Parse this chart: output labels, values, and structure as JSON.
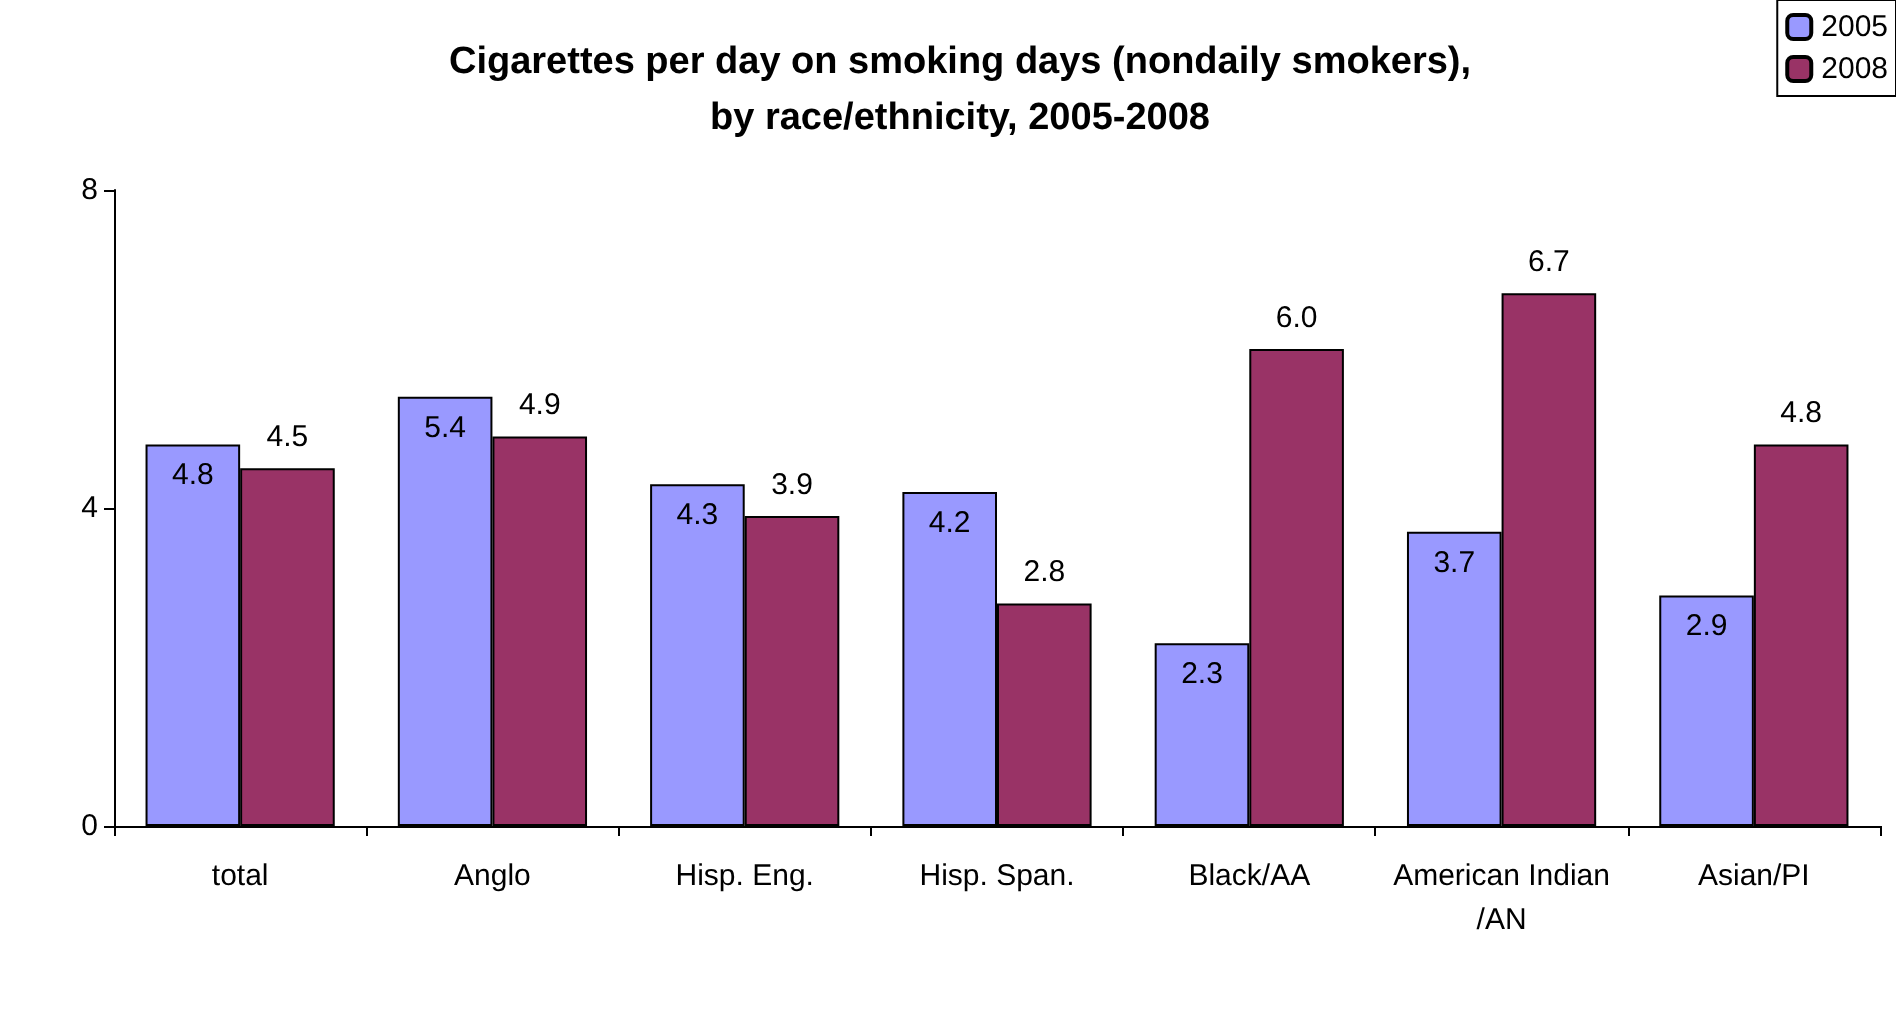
{
  "chart_data": {
    "type": "bar",
    "title": "Cigarettes per day on smoking days (nondaily smokers),\nby race/ethnicity, 2005-2008",
    "categories": [
      "total",
      "Anglo",
      "Hisp. Eng.",
      "Hisp. Span.",
      "Black/AA",
      "American Indian/AN",
      "Asian/PI"
    ],
    "series": [
      {
        "name": "2005",
        "color": "#9999ff",
        "values": [
          4.8,
          5.4,
          4.3,
          4.2,
          2.3,
          3.7,
          2.9
        ],
        "value_labels": [
          "4.8",
          "5.4",
          "4.3",
          "4.2",
          "2.3",
          "3.7",
          "2.9"
        ]
      },
      {
        "name": "2008",
        "color": "#993366",
        "values": [
          4.5,
          4.9,
          3.9,
          2.8,
          6.0,
          6.7,
          4.8
        ],
        "value_labels": [
          "4.5",
          "4.9",
          "3.9",
          "2.8",
          "6.0",
          "6.7",
          "4.8"
        ]
      }
    ],
    "ylim": [
      0,
      8
    ],
    "yticks": [
      0,
      4,
      8
    ],
    "grid": false,
    "legend": "top right"
  }
}
